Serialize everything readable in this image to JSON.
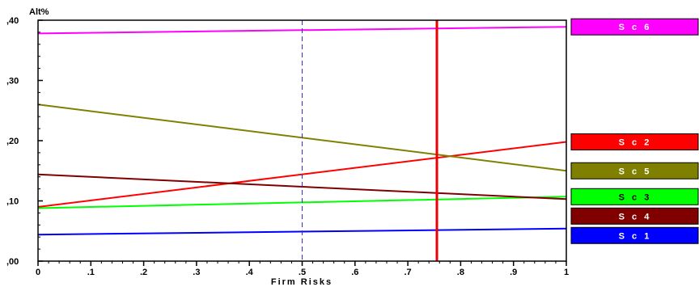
{
  "chart_data": {
    "type": "line",
    "xlabel": "Firm Risks",
    "ylabel": "Alt%",
    "xlim": [
      0,
      1
    ],
    "ylim": [
      0,
      0.4
    ],
    "x_ticks": [
      {
        "value": 0,
        "label": "0"
      },
      {
        "value": 0.1,
        "label": ".1"
      },
      {
        "value": 0.2,
        "label": ".2"
      },
      {
        "value": 0.3,
        "label": ".3"
      },
      {
        "value": 0.4,
        "label": ".4"
      },
      {
        "value": 0.5,
        "label": ".5"
      },
      {
        "value": 0.6,
        "label": ".6"
      },
      {
        "value": 0.7,
        "label": ".7"
      },
      {
        "value": 0.8,
        "label": ".8"
      },
      {
        "value": 0.9,
        "label": ".9"
      },
      {
        "value": 1,
        "label": "1"
      }
    ],
    "y_ticks": [
      {
        "value": 0,
        "label": ",00"
      },
      {
        "value": 0.1,
        "label": ",10"
      },
      {
        "value": 0.2,
        "label": ",20"
      },
      {
        "value": 0.3,
        "label": ",30"
      },
      {
        "value": 0.4,
        "label": ",40"
      }
    ],
    "reference_lines": [
      {
        "x": 0.5,
        "style": "dashed",
        "color": "#3333cc"
      },
      {
        "x": 0.755,
        "style": "solid",
        "color": "#ee0000"
      }
    ],
    "grid": false,
    "legend_position": "right",
    "series": [
      {
        "name": "S c 6",
        "x": [
          0,
          1
        ],
        "y": [
          0.378,
          0.389
        ],
        "color": "#ff00ff"
      },
      {
        "name": "S c 2",
        "x": [
          0,
          1
        ],
        "y": [
          0.09,
          0.198
        ],
        "color": "#ff0000"
      },
      {
        "name": "S c 5",
        "x": [
          0,
          1
        ],
        "y": [
          0.26,
          0.15
        ],
        "color": "#808000"
      },
      {
        "name": "S c 3",
        "x": [
          0,
          1
        ],
        "y": [
          0.088,
          0.107
        ],
        "color": "#00ff00"
      },
      {
        "name": "S c 4",
        "x": [
          0,
          1
        ],
        "y": [
          0.144,
          0.103
        ],
        "color": "#800000"
      },
      {
        "name": "S c 1",
        "x": [
          0,
          1
        ],
        "y": [
          0.044,
          0.054
        ],
        "color": "#0000ff"
      }
    ]
  }
}
